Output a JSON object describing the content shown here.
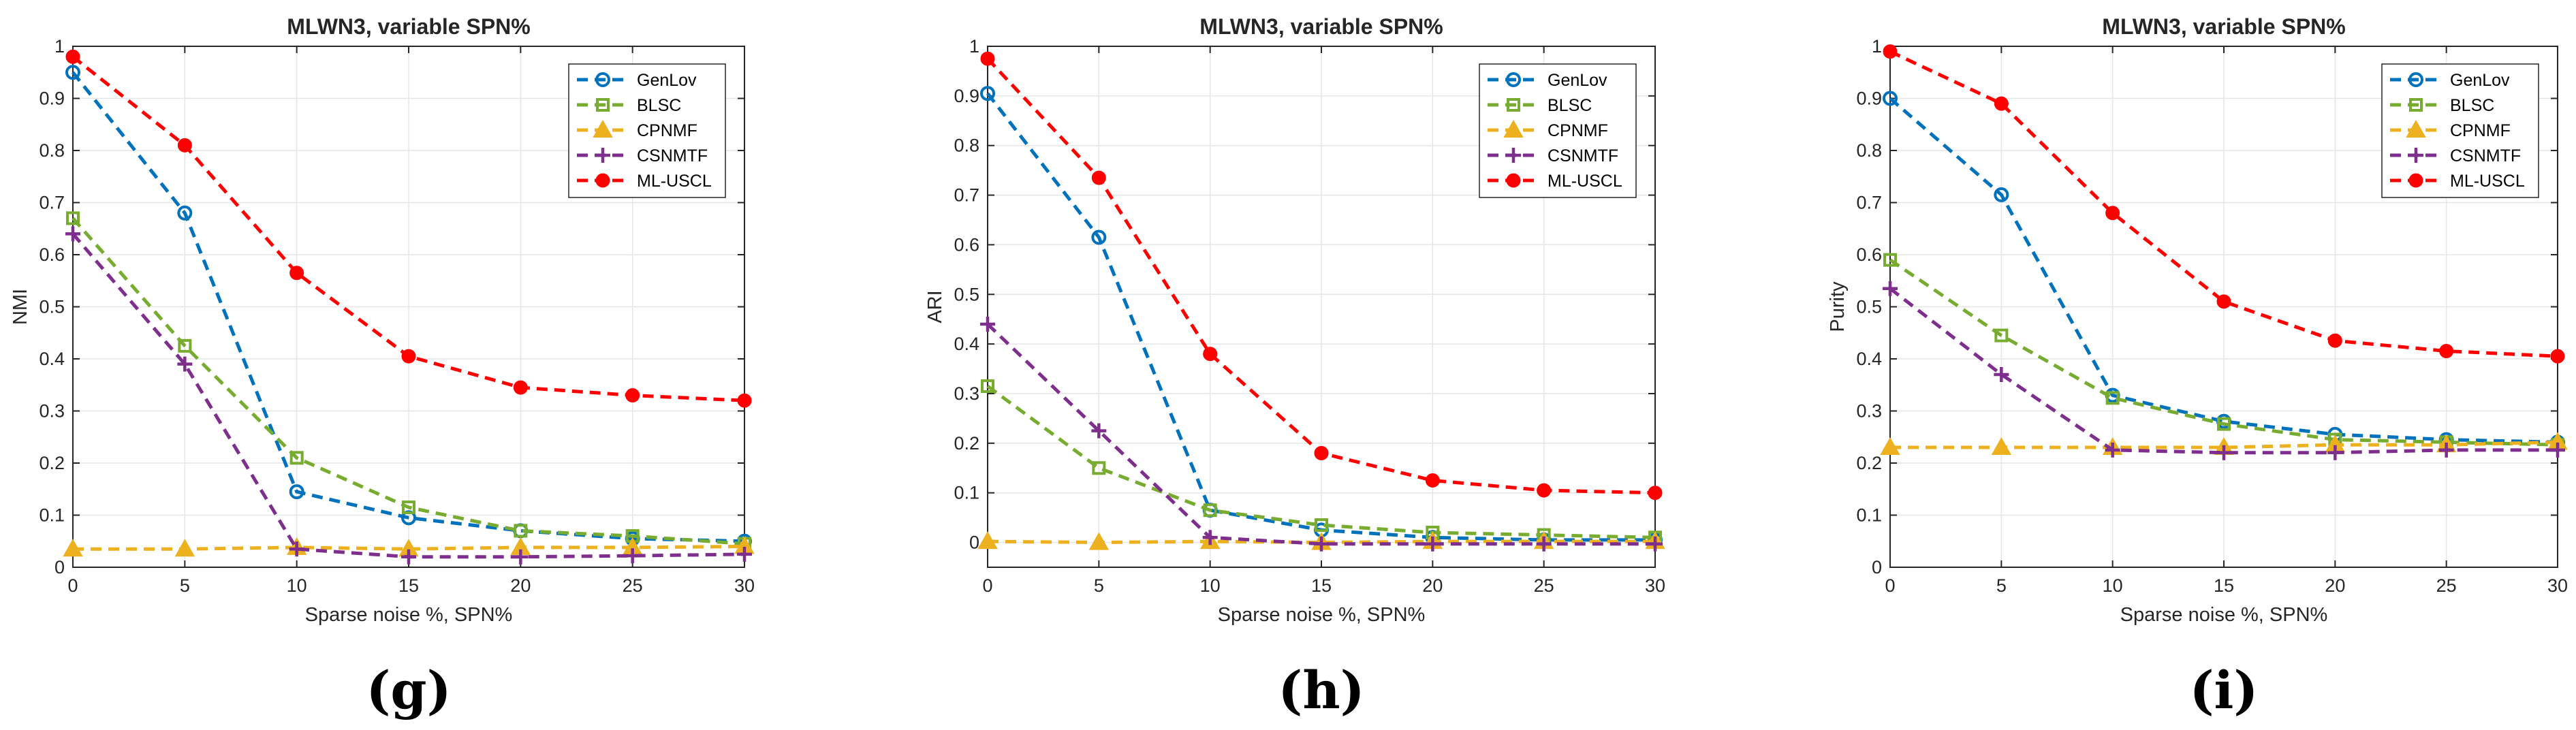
{
  "chart_data": [
    {
      "type": "line",
      "panel": "(g)",
      "title": "MLWN3, variable SPN%",
      "xlabel": "Sparse noise %, SPN%",
      "ylabel": "NMI",
      "x": [
        0,
        5,
        10,
        15,
        20,
        25,
        30
      ],
      "xlim": [
        0,
        30
      ],
      "ylim": [
        0,
        1
      ],
      "xticks": [
        "0",
        "5",
        "10",
        "15",
        "20",
        "25",
        "30"
      ],
      "yticks": [
        "0",
        "0.1",
        "0.2",
        "0.3",
        "0.4",
        "0.5",
        "0.6",
        "0.7",
        "0.8",
        "0.9",
        "1"
      ],
      "grid": true,
      "legend": "top-right",
      "series": [
        {
          "name": "GenLov",
          "values": [
            0.95,
            0.68,
            0.145,
            0.095,
            0.07,
            0.055,
            0.05
          ]
        },
        {
          "name": "BLSC",
          "values": [
            0.67,
            0.425,
            0.21,
            0.115,
            0.07,
            0.06,
            0.045
          ]
        },
        {
          "name": "CPNMF",
          "values": [
            0.035,
            0.035,
            0.038,
            0.035,
            0.038,
            0.038,
            0.04
          ]
        },
        {
          "name": "CSNMTF",
          "values": [
            0.64,
            0.39,
            0.035,
            0.02,
            0.02,
            0.022,
            0.025
          ]
        },
        {
          "name": "ML-USCL",
          "values": [
            0.98,
            0.81,
            0.565,
            0.405,
            0.345,
            0.33,
            0.32
          ]
        }
      ]
    },
    {
      "type": "line",
      "panel": "(h)",
      "title": "MLWN3, variable SPN%",
      "xlabel": "Sparse noise %, SPN%",
      "ylabel": "ARI",
      "x": [
        0,
        5,
        10,
        15,
        20,
        25,
        30
      ],
      "xlim": [
        0,
        30
      ],
      "ylim": [
        -0.05,
        1
      ],
      "xticks": [
        "0",
        "5",
        "10",
        "15",
        "20",
        "25",
        "30"
      ],
      "yticks": [
        "0",
        "0.1",
        "0.2",
        "0.3",
        "0.4",
        "0.5",
        "0.6",
        "0.7",
        "0.8",
        "0.9",
        "1"
      ],
      "grid": true,
      "legend": "top-right",
      "series": [
        {
          "name": "GenLov",
          "values": [
            0.905,
            0.615,
            0.065,
            0.025,
            0.01,
            0.005,
            0.005
          ]
        },
        {
          "name": "BLSC",
          "values": [
            0.315,
            0.15,
            0.065,
            0.035,
            0.02,
            0.015,
            0.01
          ]
        },
        {
          "name": "CPNMF",
          "values": [
            0.002,
            0.0,
            0.002,
            0.0,
            0.002,
            0.002,
            0.002
          ]
        },
        {
          "name": "CSNMTF",
          "values": [
            0.44,
            0.225,
            0.01,
            -0.003,
            -0.003,
            -0.003,
            -0.003
          ]
        },
        {
          "name": "ML-USCL",
          "values": [
            0.975,
            0.735,
            0.38,
            0.18,
            0.125,
            0.105,
            0.1
          ]
        }
      ]
    },
    {
      "type": "line",
      "panel": "(i)",
      "title": "MLWN3, variable SPN%",
      "xlabel": "Sparse noise %, SPN%",
      "ylabel": "Purity",
      "x": [
        0,
        5,
        10,
        15,
        20,
        25,
        30
      ],
      "xlim": [
        0,
        30
      ],
      "ylim": [
        0,
        1
      ],
      "xticks": [
        "0",
        "5",
        "10",
        "15",
        "20",
        "25",
        "30"
      ],
      "yticks": [
        "0",
        "0.1",
        "0.2",
        "0.3",
        "0.4",
        "0.5",
        "0.6",
        "0.7",
        "0.8",
        "0.9",
        "1"
      ],
      "grid": true,
      "legend": "top-right",
      "series": [
        {
          "name": "GenLov",
          "values": [
            0.9,
            0.715,
            0.33,
            0.28,
            0.255,
            0.245,
            0.24
          ]
        },
        {
          "name": "BLSC",
          "values": [
            0.59,
            0.445,
            0.325,
            0.275,
            0.245,
            0.24,
            0.235
          ]
        },
        {
          "name": "CPNMF",
          "values": [
            0.23,
            0.23,
            0.23,
            0.23,
            0.235,
            0.235,
            0.24
          ]
        },
        {
          "name": "CSNMTF",
          "values": [
            0.535,
            0.37,
            0.225,
            0.22,
            0.22,
            0.225,
            0.225
          ]
        },
        {
          "name": "ML-USCL",
          "values": [
            0.99,
            0.89,
            0.68,
            0.51,
            0.435,
            0.415,
            0.405
          ]
        }
      ]
    }
  ],
  "series_styles": [
    {
      "name": "GenLov",
      "color": "#0072BD",
      "marker": "circle"
    },
    {
      "name": "BLSC",
      "color": "#77AC30",
      "marker": "square"
    },
    {
      "name": "CPNMF",
      "color": "#EDB120",
      "marker": "triangle"
    },
    {
      "name": "CSNMTF",
      "color": "#7E2F8E",
      "marker": "plus"
    },
    {
      "name": "ML-USCL",
      "color": "#FF0000",
      "marker": "dot"
    }
  ],
  "colors": {
    "grid": "#e6e6e6",
    "axis": "#262626",
    "background": "#ffffff"
  }
}
